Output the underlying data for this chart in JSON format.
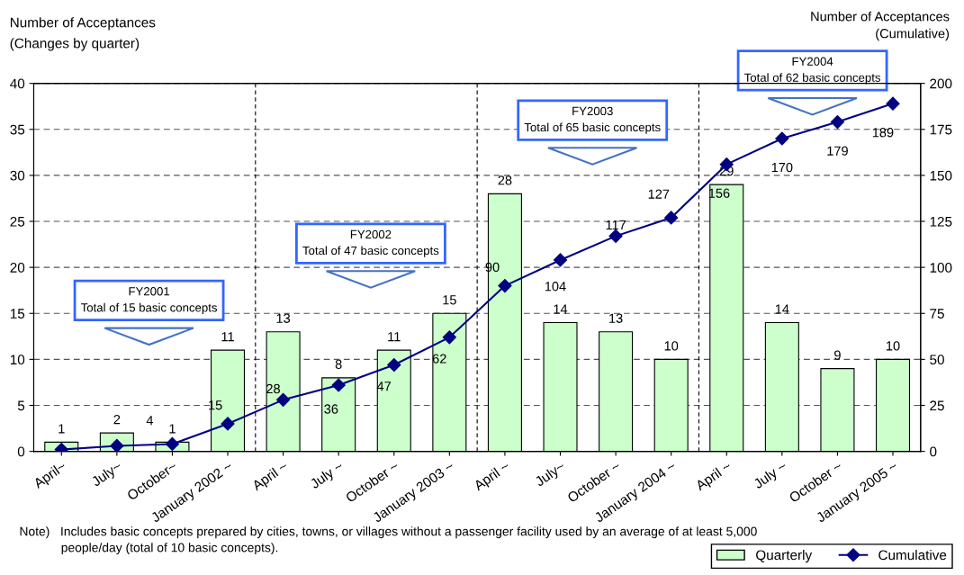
{
  "chart_data": {
    "type": "bar",
    "categories": [
      "April~",
      "July~",
      "October~",
      "January 2002 ~",
      "April ~",
      "July ~",
      "October ~",
      "January 2003 ~",
      "April ~",
      "July~",
      "October ~",
      "January 2004 ~",
      "April ~",
      "July ~",
      "October ~",
      "January 2005 ~"
    ],
    "ylabel": "Number of Acceptances\n(Changes by quarter)",
    "y2label": "Number of Acceptances\n(Cumulative)",
    "series": [
      {
        "name": "Quarterly",
        "color": "#ccffcc",
        "values": [
          1,
          2,
          1,
          11,
          13,
          8,
          11,
          15,
          28,
          14,
          13,
          10,
          29,
          14,
          9,
          10
        ],
        "value_labels": [
          "1",
          "2",
          "1",
          "11",
          "13",
          "8",
          "11",
          "15",
          "28",
          "14",
          "13",
          "10",
          "29",
          "14",
          "9",
          "10"
        ]
      },
      {
        "name": "Cumulative",
        "type": "line",
        "axis": "y2",
        "color": "#000080",
        "marker": "diamond",
        "values": [
          1,
          3,
          4,
          15,
          28,
          36,
          47,
          62,
          90,
          104,
          117,
          127,
          156,
          170,
          179,
          189
        ],
        "value_labels": [
          null,
          null,
          "4",
          "15",
          "28",
          "36",
          "47",
          "62",
          "90",
          "104",
          "117",
          "127",
          "156",
          "170",
          "179",
          "189"
        ]
      }
    ],
    "ylim": [
      0,
      40
    ],
    "yticks": [
      0,
      5,
      10,
      15,
      20,
      25,
      30,
      35,
      40
    ],
    "y2lim": [
      0,
      200
    ],
    "y2ticks": [
      0,
      25,
      50,
      75,
      100,
      125,
      150,
      175,
      200
    ],
    "grid": "y",
    "annotations": [
      "FY2001\nTotal of 15 basic concepts",
      "FY2002\nTotal of 47 basic concepts",
      "FY2003\nTotal of 65 basic concepts",
      "FY2004\nTotal of 62 basic concepts",
      "Note)   Includes basic concepts prepared by cities, towns, or villages without a passenger facility used by an average of at least 5,000\n            people/day (total of 10 basic concepts)."
    ],
    "legend": "bottom right"
  }
}
